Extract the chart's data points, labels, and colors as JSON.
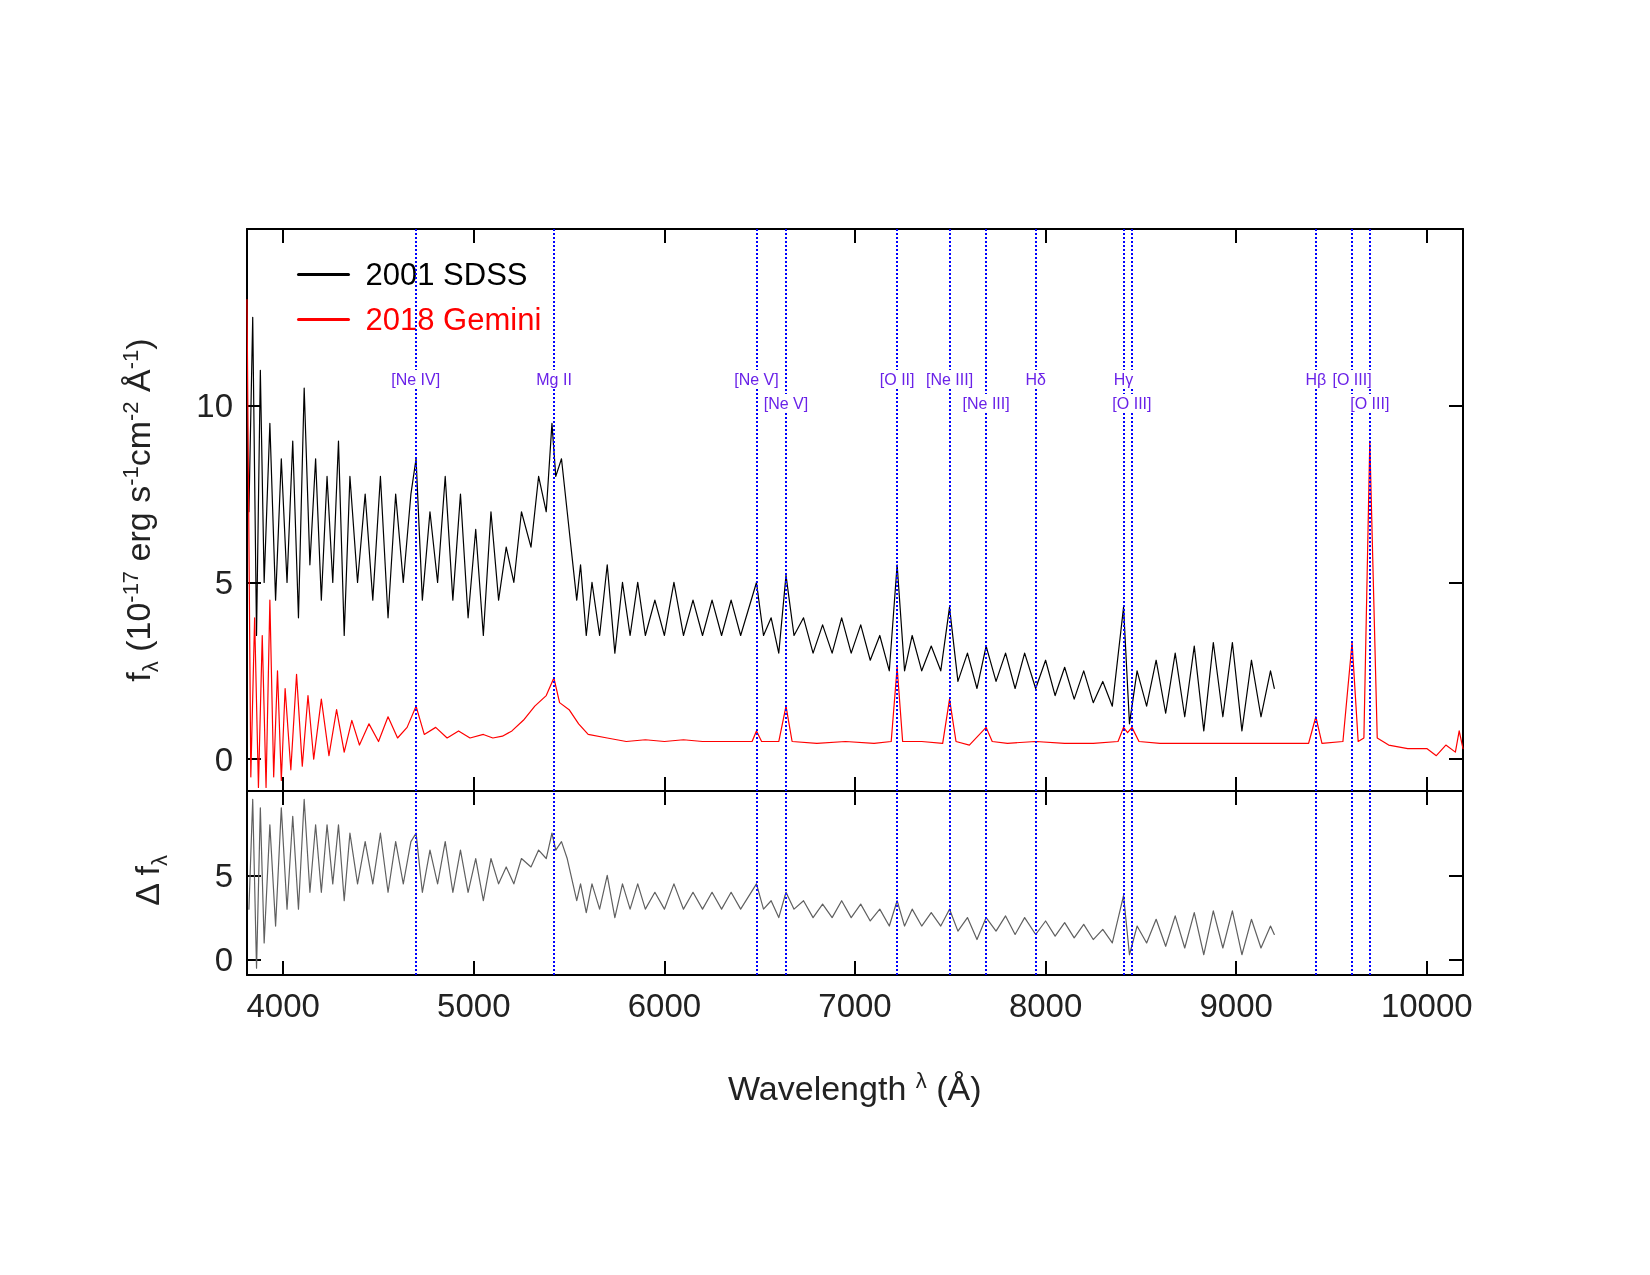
{
  "chart_data": [
    {
      "type": "line",
      "ylabel": "f$_{λ}$ (10$^{-17}$ erg s$^{-1}$cm$^{-2}$ Å$^{-1}$)",
      "xlim": [
        3810,
        10190
      ],
      "xticks": [
        4000,
        5000,
        6000,
        7000,
        8000,
        9000,
        10000
      ],
      "ylim": [
        -0.9,
        15
      ],
      "yticks": [
        0,
        5,
        10
      ],
      "tick_labels": "y",
      "legend": "top left",
      "series": [
        {
          "name": "2001 SDSS",
          "color": "#000000",
          "x": [
            3820,
            3840,
            3860,
            3880,
            3900,
            3930,
            3960,
            3990,
            4020,
            4050,
            4080,
            4110,
            4140,
            4170,
            4200,
            4230,
            4260,
            4290,
            4320,
            4350,
            4390,
            4430,
            4470,
            4510,
            4550,
            4590,
            4630,
            4670,
            4697,
            4730,
            4770,
            4810,
            4850,
            4890,
            4930,
            4970,
            5010,
            5050,
            5090,
            5130,
            5170,
            5210,
            5250,
            5300,
            5340,
            5380,
            5410,
            5430,
            5460,
            5490,
            5510,
            5540,
            5560,
            5590,
            5620,
            5660,
            5700,
            5740,
            5780,
            5820,
            5860,
            5900,
            5950,
            6000,
            6050,
            6100,
            6150,
            6200,
            6250,
            6300,
            6350,
            6400,
            6483,
            6520,
            6560,
            6600,
            6638,
            6680,
            6730,
            6780,
            6830,
            6880,
            6930,
            6980,
            7030,
            7080,
            7130,
            7180,
            7221,
            7260,
            7300,
            7350,
            7400,
            7450,
            7496,
            7540,
            7590,
            7640,
            7688,
            7740,
            7790,
            7840,
            7890,
            7948,
            8000,
            8050,
            8100,
            8150,
            8200,
            8250,
            8300,
            8350,
            8409,
            8440,
            8480,
            8530,
            8580,
            8630,
            8680,
            8730,
            8780,
            8830,
            8880,
            8930,
            8980,
            9030,
            9080,
            9130,
            9180,
            9200
          ],
          "values": [
            7,
            12.5,
            3.5,
            11,
            5,
            9.5,
            4.5,
            8.5,
            5,
            9,
            4,
            10.5,
            5.5,
            8.5,
            4.5,
            8,
            5,
            9,
            3.5,
            8,
            5,
            7.5,
            4.5,
            8,
            4,
            7.5,
            5,
            7.5,
            8.5,
            4.5,
            7,
            5,
            8,
            4.5,
            7.5,
            4,
            6.5,
            3.5,
            7,
            4.5,
            6,
            5,
            7,
            6,
            8,
            7,
            9.5,
            8,
            8.5,
            7,
            6,
            4.5,
            5.5,
            3.5,
            5,
            3.5,
            5.5,
            3,
            5,
            3.5,
            5,
            3.5,
            4.5,
            3.5,
            5,
            3.5,
            4.5,
            3.5,
            4.5,
            3.5,
            4.5,
            3.5,
            5,
            3.5,
            4,
            3,
            5.2,
            3.5,
            4,
            3,
            3.8,
            3,
            4,
            3,
            3.8,
            2.8,
            3.5,
            2.5,
            5.5,
            2.5,
            3.5,
            2.5,
            3.2,
            2.5,
            4.3,
            2.2,
            3,
            2,
            3.2,
            2.2,
            3,
            2,
            3,
            2,
            2.8,
            1.8,
            2.6,
            1.7,
            2.5,
            1.6,
            2.2,
            1.5,
            4.3,
            1,
            2.5,
            1.5,
            2.8,
            1.3,
            3,
            1.2,
            3.2,
            0.8,
            3.3,
            1.2,
            3.3,
            0.8,
            2.8,
            1.2,
            2.5,
            2
          ]
        },
        {
          "name": "2018 Gemini",
          "color": "#ff0000",
          "x": [
            3810,
            3830,
            3850,
            3870,
            3890,
            3910,
            3930,
            3950,
            3970,
            3990,
            4010,
            4040,
            4070,
            4100,
            4130,
            4160,
            4200,
            4240,
            4280,
            4320,
            4360,
            4400,
            4450,
            4500,
            4550,
            4600,
            4650,
            4697,
            4740,
            4800,
            4860,
            4920,
            4980,
            5050,
            5100,
            5150,
            5200,
            5260,
            5320,
            5380,
            5420,
            5450,
            5500,
            5550,
            5600,
            5700,
            5800,
            5900,
            6000,
            6100,
            6200,
            6300,
            6400,
            6460,
            6483,
            6510,
            6600,
            6638,
            6670,
            6800,
            6950,
            7100,
            7190,
            7221,
            7250,
            7350,
            7460,
            7496,
            7530,
            7600,
            7688,
            7720,
            7800,
            7948,
            8100,
            8250,
            8380,
            8409,
            8430,
            8453,
            8490,
            8600,
            8750,
            8900,
            9050,
            9200,
            9380,
            9418,
            9450,
            9560,
            9608,
            9640,
            9670,
            9701,
            9740,
            9800,
            9900,
            10000,
            10050,
            10100,
            10150,
            10170,
            10190
          ],
          "values": [
            13,
            -0.5,
            4,
            -0.8,
            3.5,
            -0.8,
            4.5,
            -0.5,
            2.5,
            -0.6,
            2,
            -0.3,
            2.4,
            -0.2,
            1.8,
            0,
            1.7,
            0.1,
            1.4,
            0.2,
            1.1,
            0.4,
            1,
            0.5,
            1.2,
            0.6,
            0.9,
            1.5,
            0.7,
            0.9,
            0.6,
            0.8,
            0.6,
            0.7,
            0.6,
            0.65,
            0.8,
            1.1,
            1.5,
            1.8,
            2.3,
            1.6,
            1.4,
            1,
            0.7,
            0.6,
            0.5,
            0.55,
            0.5,
            0.55,
            0.5,
            0.5,
            0.5,
            0.5,
            0.8,
            0.5,
            0.5,
            1.5,
            0.5,
            0.45,
            0.5,
            0.45,
            0.5,
            2.6,
            0.5,
            0.5,
            0.45,
            1.7,
            0.5,
            0.4,
            0.9,
            0.5,
            0.45,
            0.5,
            0.45,
            0.45,
            0.5,
            0.9,
            0.75,
            0.9,
            0.5,
            0.45,
            0.45,
            0.45,
            0.45,
            0.45,
            0.45,
            1.2,
            0.45,
            0.5,
            3.3,
            0.5,
            0.6,
            9,
            0.6,
            0.4,
            0.3,
            0.3,
            0.1,
            0.4,
            0.2,
            0.8,
            0.3
          ]
        }
      ],
      "ref_lines": [
        {
          "axis": "x",
          "value": 4695,
          "label": "[Ne IV]",
          "color": "#0000ff",
          "line_style": "dotted"
        },
        {
          "axis": "x",
          "value": 5421,
          "label": "Mg II",
          "color": "#0000ff",
          "line_style": "dotted"
        },
        {
          "axis": "x",
          "value": 6483,
          "label": "[Ne V]",
          "color": "#0000ff",
          "line_style": "dotted"
        },
        {
          "axis": "x",
          "value": 6638,
          "label": "[Ne V]",
          "color": "#0000ff",
          "line_style": "dotted"
        },
        {
          "axis": "x",
          "value": 7221,
          "label": "[O II]",
          "color": "#0000ff",
          "line_style": "dotted"
        },
        {
          "axis": "x",
          "value": 7496,
          "label": "[Ne III]",
          "color": "#0000ff",
          "line_style": "dotted"
        },
        {
          "axis": "x",
          "value": 7688,
          "label": "[Ne III]",
          "color": "#0000ff",
          "line_style": "dotted"
        },
        {
          "axis": "x",
          "value": 7948,
          "label": "Hδ",
          "color": "#0000ff",
          "line_style": "dotted"
        },
        {
          "axis": "x",
          "value": 8409,
          "label": "Hγ",
          "color": "#0000ff",
          "line_style": "dotted"
        },
        {
          "axis": "x",
          "value": 8453,
          "label": "[O III]",
          "color": "#0000ff",
          "line_style": "dotted"
        },
        {
          "axis": "x",
          "value": 9418,
          "label": "Hβ",
          "color": "#0000ff",
          "line_style": "dotted"
        },
        {
          "axis": "x",
          "value": 9608,
          "label": "[O III]",
          "color": "#0000ff",
          "line_style": "dotted"
        },
        {
          "axis": "x",
          "value": 9701,
          "label": "[O III]",
          "color": "#0000ff",
          "line_style": "dotted"
        }
      ]
    },
    {
      "type": "line",
      "xlabel": "Wavelength $^{λ}$ (Å)",
      "ylabel": "Δ f$_{λ}$",
      "xlim": [
        3810,
        10190
      ],
      "xticks": [
        4000,
        5000,
        6000,
        7000,
        8000,
        9000,
        10000
      ],
      "ylim": [
        -0.9,
        10
      ],
      "yticks": [
        0,
        5
      ],
      "series": [
        {
          "color": "#606060",
          "x": [
            3820,
            3840,
            3860,
            3880,
            3900,
            3930,
            3960,
            3990,
            4020,
            4050,
            4080,
            4110,
            4140,
            4170,
            4200,
            4230,
            4260,
            4290,
            4320,
            4350,
            4390,
            4430,
            4470,
            4510,
            4550,
            4590,
            4630,
            4670,
            4697,
            4730,
            4770,
            4810,
            4850,
            4890,
            4930,
            4970,
            5010,
            5050,
            5090,
            5130,
            5170,
            5210,
            5250,
            5300,
            5340,
            5380,
            5410,
            5430,
            5460,
            5490,
            5510,
            5540,
            5560,
            5590,
            5620,
            5660,
            5700,
            5740,
            5780,
            5820,
            5860,
            5900,
            5950,
            6000,
            6050,
            6100,
            6150,
            6200,
            6250,
            6300,
            6350,
            6400,
            6483,
            6520,
            6560,
            6600,
            6638,
            6680,
            6730,
            6780,
            6830,
            6880,
            6930,
            6980,
            7030,
            7080,
            7130,
            7180,
            7221,
            7260,
            7300,
            7350,
            7400,
            7450,
            7496,
            7540,
            7590,
            7640,
            7688,
            7740,
            7790,
            7840,
            7890,
            7948,
            8000,
            8050,
            8100,
            8150,
            8200,
            8250,
            8300,
            8350,
            8409,
            8440,
            8480,
            8530,
            8580,
            8630,
            8680,
            8730,
            8780,
            8830,
            8880,
            8930,
            8980,
            9030,
            9080,
            9130,
            9180,
            9200
          ],
          "values": [
            3,
            9.5,
            -0.5,
            9,
            1,
            8,
            2,
            9,
            3,
            8.5,
            3,
            9.5,
            4,
            8,
            4,
            8,
            4.5,
            8,
            3.5,
            7.5,
            4.5,
            7,
            4.5,
            7.5,
            4,
            7,
            4.5,
            7,
            7.5,
            4,
            6.5,
            4.5,
            7,
            4,
            6.5,
            4,
            6,
            3.5,
            6,
            4.5,
            5.5,
            4.5,
            6,
            5.5,
            6.5,
            6,
            7.5,
            6.5,
            7,
            6,
            5,
            3.5,
            4.5,
            2.8,
            4.5,
            3,
            5,
            2.5,
            4.5,
            3,
            4.5,
            3,
            4,
            3,
            4.5,
            3,
            4,
            3,
            4,
            3,
            4,
            3,
            4.5,
            3,
            3.5,
            2.5,
            4,
            3,
            3.5,
            2.5,
            3.3,
            2.5,
            3.5,
            2.5,
            3.3,
            2.3,
            3,
            2,
            3.5,
            2,
            3,
            2,
            2.8,
            2,
            3,
            1.7,
            2.5,
            1.2,
            2.5,
            1.7,
            2.6,
            1.5,
            2.5,
            1.5,
            2.3,
            1.4,
            2.2,
            1.3,
            2.1,
            1.2,
            1.8,
            1,
            3.8,
            0.3,
            2,
            1,
            2.4,
            0.8,
            2.6,
            0.7,
            2.8,
            0.3,
            2.9,
            0.7,
            2.9,
            0.3,
            2.4,
            0.7,
            2,
            1.5
          ]
        }
      ],
      "ref_lines": [
        {
          "axis": "x",
          "value": 4695,
          "color": "#0000ff",
          "line_style": "dotted"
        },
        {
          "axis": "x",
          "value": 5421,
          "color": "#0000ff",
          "line_style": "dotted"
        },
        {
          "axis": "x",
          "value": 6483,
          "color": "#0000ff",
          "line_style": "dotted"
        },
        {
          "axis": "x",
          "value": 6638,
          "color": "#0000ff",
          "line_style": "dotted"
        },
        {
          "axis": "x",
          "value": 7221,
          "color": "#0000ff",
          "line_style": "dotted"
        },
        {
          "axis": "x",
          "value": 7496,
          "color": "#0000ff",
          "line_style": "dotted"
        },
        {
          "axis": "x",
          "value": 7688,
          "color": "#0000ff",
          "line_style": "dotted"
        },
        {
          "axis": "x",
          "value": 7948,
          "color": "#0000ff",
          "line_style": "dotted"
        },
        {
          "axis": "x",
          "value": 8409,
          "color": "#0000ff",
          "line_style": "dotted"
        },
        {
          "axis": "x",
          "value": 8453,
          "color": "#0000ff",
          "line_style": "dotted"
        },
        {
          "axis": "x",
          "value": 9418,
          "color": "#0000ff",
          "line_style": "dotted"
        },
        {
          "axis": "x",
          "value": 9608,
          "color": "#0000ff",
          "line_style": "dotted"
        },
        {
          "axis": "x",
          "value": 9701,
          "color": "#0000ff",
          "line_style": "dotted"
        }
      ]
    }
  ]
}
